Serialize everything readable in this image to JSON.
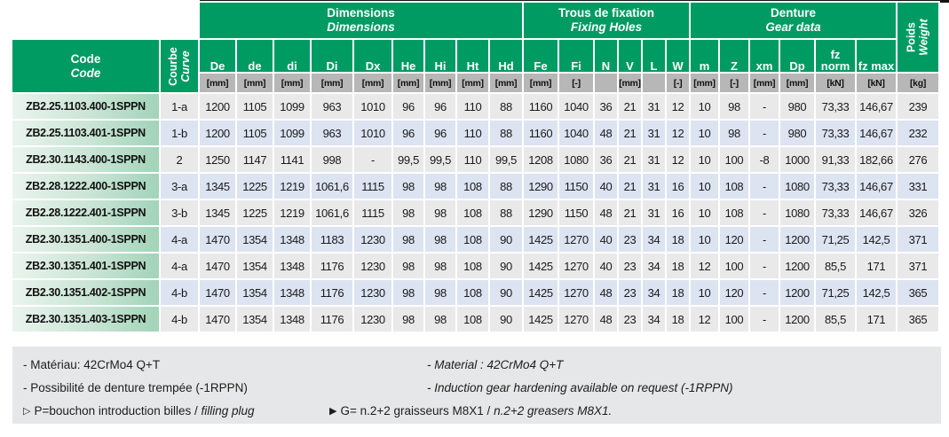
{
  "colors": {
    "header_green": "#009B63",
    "row_gray": "#E9E9E9",
    "row_blue": "#DCE3F1",
    "unit_gray": "#B7B7B7",
    "code_gradient_start": "#EAF4EE",
    "code_gradient_end": "#A2D3B8",
    "footer_gray": "#E6E7E8"
  },
  "table": {
    "code_header": {
      "fr": "Code",
      "en": "Code"
    },
    "curve_header": {
      "fr": "Courbe",
      "en": "Curve"
    },
    "groups": [
      {
        "fr": "Dimensions",
        "en": "Dimensions"
      },
      {
        "fr": "Trous de fixation",
        "en": "Fixing Holes"
      },
      {
        "fr": "Denture",
        "en": "Gear data"
      },
      {
        "fr": "Poids",
        "en": "Weight"
      }
    ],
    "weight_unit": "[kg]",
    "columns": [
      {
        "label": "De",
        "unit": "[mm]"
      },
      {
        "label": "de",
        "unit": "[mm]"
      },
      {
        "label": "di",
        "unit": "[mm]"
      },
      {
        "label": "Di",
        "unit": "[mm]"
      },
      {
        "label": "Dx",
        "unit": "[mm]"
      },
      {
        "label": "He",
        "unit": "[mm]"
      },
      {
        "label": "Hi",
        "unit": "[mm]"
      },
      {
        "label": "Ht",
        "unit": "[mm]"
      },
      {
        "label": "Hd",
        "unit": "[mm]"
      },
      {
        "label": "Fe",
        "unit": "[mm]"
      },
      {
        "label": "Fi",
        "unit": "[-]"
      },
      {
        "label": "N",
        "unit": ""
      },
      {
        "label": "V",
        "unit": "[mm]"
      },
      {
        "label": "L",
        "unit": ""
      },
      {
        "label": "W",
        "unit": "[-]"
      },
      {
        "label": "m",
        "unit": "[mm]"
      },
      {
        "label": "Z",
        "unit": "[-]"
      },
      {
        "label": "xm",
        "unit": "[mm]"
      },
      {
        "label": "Dp",
        "unit": "[mm]"
      },
      {
        "label": "fz norm",
        "unit": "[kN]"
      },
      {
        "label": "fz max",
        "unit": "[kN]"
      }
    ],
    "rows": [
      {
        "code": "ZB2.25.1103.400-1SPPN",
        "curve": "1-a",
        "values": [
          "1200",
          "1105",
          "1099",
          "963",
          "1010",
          "96",
          "96",
          "110",
          "88",
          "1160",
          "1040",
          "36",
          "21",
          "31",
          "12",
          "10",
          "98",
          "-",
          "980",
          "73,33",
          "146,67"
        ],
        "weight": "239"
      },
      {
        "code": "ZB2.25.1103.401-1SPPN",
        "curve": "1-b",
        "values": [
          "1200",
          "1105",
          "1099",
          "963",
          "1010",
          "96",
          "96",
          "110",
          "88",
          "1160",
          "1040",
          "48",
          "21",
          "31",
          "12",
          "10",
          "98",
          "-",
          "980",
          "73,33",
          "146,67"
        ],
        "weight": "232"
      },
      {
        "code": "ZB2.30.1143.400-1SPPN",
        "curve": "2",
        "values": [
          "1250",
          "1147",
          "1141",
          "998",
          "-",
          "99,5",
          "99,5",
          "110",
          "99,5",
          "1208",
          "1080",
          "36",
          "21",
          "31",
          "12",
          "10",
          "100",
          "-8",
          "1000",
          "91,33",
          "182,66"
        ],
        "weight": "276"
      },
      {
        "code": "ZB2.28.1222.400-1SPPN",
        "curve": "3-a",
        "values": [
          "1345",
          "1225",
          "1219",
          "1061,6",
          "1115",
          "98",
          "98",
          "108",
          "88",
          "1290",
          "1150",
          "40",
          "21",
          "31",
          "16",
          "10",
          "108",
          "-",
          "1080",
          "73,33",
          "146,67"
        ],
        "weight": "331"
      },
      {
        "code": "ZB2.28.1222.401-1SPPN",
        "curve": "3-b",
        "values": [
          "1345",
          "1225",
          "1219",
          "1061,6",
          "1115",
          "98",
          "98",
          "108",
          "88",
          "1290",
          "1150",
          "48",
          "21",
          "31",
          "16",
          "10",
          "108",
          "-",
          "1080",
          "73,33",
          "146,67"
        ],
        "weight": "326"
      },
      {
        "code": "ZB2.30.1351.400-1SPPN",
        "curve": "4-a",
        "values": [
          "1470",
          "1354",
          "1348",
          "1183",
          "1230",
          "98",
          "98",
          "108",
          "90",
          "1425",
          "1270",
          "40",
          "23",
          "34",
          "18",
          "10",
          "120",
          "-",
          "1200",
          "71,25",
          "142,5"
        ],
        "weight": "371"
      },
      {
        "code": "ZB2.30.1351.401-1SPPN",
        "curve": "4-a",
        "values": [
          "1470",
          "1354",
          "1348",
          "1176",
          "1230",
          "98",
          "98",
          "108",
          "90",
          "1425",
          "1270",
          "40",
          "23",
          "34",
          "18",
          "12",
          "100",
          "-",
          "1200",
          "85,5",
          "171"
        ],
        "weight": "371"
      },
      {
        "code": "ZB2.30.1351.402-1SPPN",
        "curve": "4-b",
        "values": [
          "1470",
          "1354",
          "1348",
          "1176",
          "1230",
          "98",
          "98",
          "108",
          "90",
          "1425",
          "1270",
          "48",
          "23",
          "34",
          "18",
          "10",
          "120",
          "-",
          "1200",
          "71,25",
          "142,5"
        ],
        "weight": "365"
      },
      {
        "code": "ZB2.30.1351.403-1SPPN",
        "curve": "4-b",
        "values": [
          "1470",
          "1354",
          "1348",
          "1176",
          "1230",
          "98",
          "98",
          "108",
          "90",
          "1425",
          "1270",
          "48",
          "23",
          "34",
          "18",
          "12",
          "100",
          "-",
          "1200",
          "85,5",
          "171"
        ],
        "weight": "365"
      }
    ]
  },
  "footer": {
    "material_fr": "- Matériau: 42CrMo4 Q+T",
    "material_en": "- Material : 42CrMo4 Q+T",
    "hardening_fr": "- Possibilité de denture trempée (-1RPPN)",
    "hardening_en": "- Induction gear hardening available on request (-1RPPN)",
    "note_plug": {
      "marker": "▷",
      "text": "P=bouchon  introduction billes /",
      "italic": "filling plug"
    },
    "note_grease": {
      "marker": "▶",
      "text": "G= n.2+2 graisseurs M8X1  /",
      "italic": "n.2+2 greasers M8X1."
    }
  }
}
